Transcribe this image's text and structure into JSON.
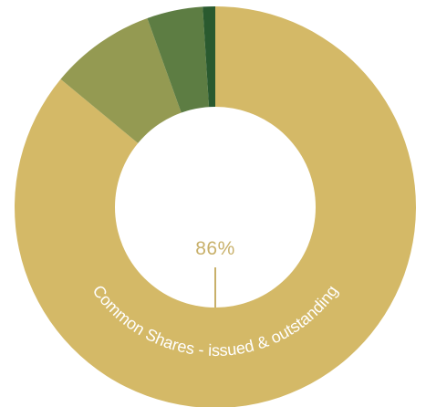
{
  "chart_data": {
    "type": "pie",
    "categories": [
      "Common Shares - issued & outstanding",
      "",
      "",
      ""
    ],
    "values": [
      86,
      8.5,
      4.5,
      1
    ],
    "colors": [
      "#d4b967",
      "#949a52",
      "#5d7d43",
      "#2a5a2f"
    ],
    "data_labels": {
      "main_value": "86%"
    },
    "arc_label": "Common Shares - issued & outstanding",
    "label_color": "#c8b06a"
  }
}
